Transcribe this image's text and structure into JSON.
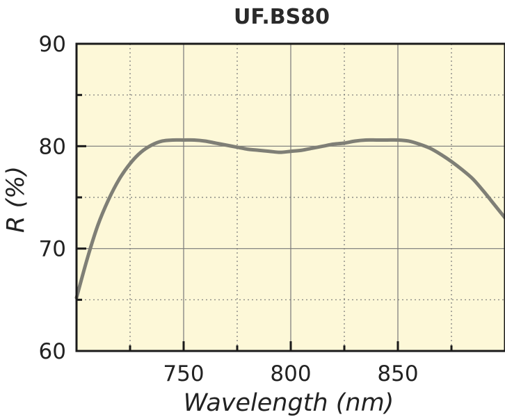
{
  "chart_data": {
    "type": "line",
    "title": "UF.BS80",
    "xlabel": "Wavelength (nm)",
    "ylabel": "R (%)",
    "xlim": [
      700,
      900
    ],
    "ylim": [
      60,
      90
    ],
    "x_ticks": [
      750,
      800,
      850
    ],
    "x_minor_ticks": [
      725,
      775,
      825,
      875
    ],
    "y_ticks": [
      60,
      70,
      80,
      90
    ],
    "y_minor_ticks": [
      65,
      75,
      85
    ],
    "x_tick_labels": [
      "750",
      "800",
      "850"
    ],
    "y_tick_labels": [
      "60",
      "70",
      "80",
      "90"
    ],
    "grid": true,
    "legend": "none",
    "series": [
      {
        "color": "#7f7f76",
        "x": [
          700,
          705,
          710,
          715,
          720,
          725,
          730,
          735,
          740,
          745,
          750,
          755,
          760,
          765,
          770,
          775,
          780,
          785,
          790,
          795,
          800,
          805,
          810,
          815,
          820,
          825,
          830,
          835,
          840,
          845,
          850,
          855,
          860,
          865,
          870,
          875,
          880,
          885,
          890,
          895,
          900
        ],
        "y": [
          65.2,
          69.0,
          72.3,
          74.8,
          76.8,
          78.3,
          79.4,
          80.1,
          80.5,
          80.6,
          80.6,
          80.6,
          80.5,
          80.3,
          80.1,
          79.9,
          79.7,
          79.6,
          79.5,
          79.4,
          79.5,
          79.6,
          79.8,
          80.0,
          80.2,
          80.3,
          80.5,
          80.6,
          80.6,
          80.6,
          80.6,
          80.5,
          80.2,
          79.8,
          79.2,
          78.5,
          77.7,
          76.8,
          75.6,
          74.3,
          73.0
        ]
      }
    ]
  },
  "colors": {
    "plot_background": "#fdf8d8",
    "frame": "#1a1a1a",
    "grid": "#777777"
  }
}
